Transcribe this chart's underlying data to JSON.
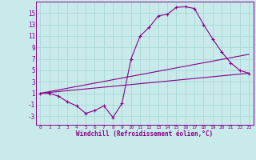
{
  "background_color": "#c8eaea",
  "grid_color": "#a8d8d8",
  "line_color": "#880088",
  "xlabel": "Windchill (Refroidissement éolien,°C)",
  "xlim": [
    -0.5,
    23.5
  ],
  "ylim": [
    -4.5,
    17
  ],
  "yticks": [
    -3,
    -1,
    1,
    3,
    5,
    7,
    9,
    11,
    13,
    15
  ],
  "xticks": [
    0,
    1,
    2,
    3,
    4,
    5,
    6,
    7,
    8,
    9,
    10,
    11,
    12,
    13,
    14,
    15,
    16,
    17,
    18,
    19,
    20,
    21,
    22,
    23
  ],
  "line1_x": [
    0,
    1,
    2,
    3,
    4,
    5,
    6,
    7,
    8,
    9,
    10,
    11,
    12,
    13,
    14,
    15,
    16,
    17,
    18,
    19,
    20,
    21,
    22,
    23
  ],
  "line1_y": [
    1,
    1,
    0.5,
    -0.5,
    -1.2,
    -2.5,
    -2.0,
    -1.2,
    -3.2,
    -0.8,
    7.0,
    11.0,
    12.5,
    14.5,
    14.8,
    16.0,
    16.1,
    15.8,
    13.0,
    10.5,
    8.2,
    6.3,
    5.0,
    4.5
  ],
  "line2_x": [
    0,
    23
  ],
  "line2_y": [
    1.0,
    4.5
  ],
  "line3_x": [
    0,
    23
  ],
  "line3_y": [
    1.0,
    7.8
  ],
  "marker": "+"
}
